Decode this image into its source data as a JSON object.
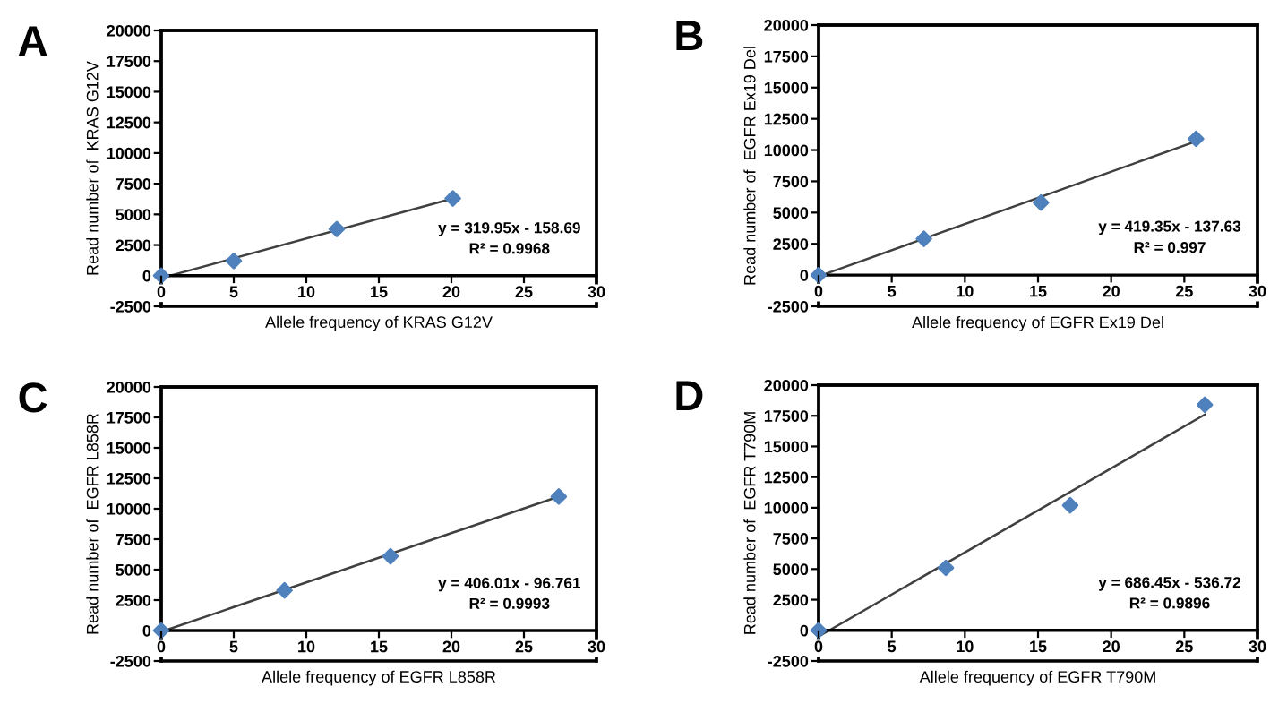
{
  "chart_data": [
    {
      "type": "scatter",
      "title": "A",
      "xlabel": "Allele frequency of KRAS G12V",
      "ylabel": "Read number of  KRAS G12V",
      "xlim": [
        0,
        30
      ],
      "ylim": [
        -2500,
        20000
      ],
      "xticks": [
        0,
        5,
        10,
        15,
        20,
        25,
        30
      ],
      "yticks": [
        -2500,
        0,
        2500,
        5000,
        7500,
        10000,
        12500,
        15000,
        17500,
        20000
      ],
      "grid": false,
      "series": [
        {
          "color": "#4f81bd",
          "marker": "diamond",
          "x": [
            0,
            5,
            12.1,
            20.1
          ],
          "values": [
            0,
            1200,
            3800,
            6300
          ]
        },
        {
          "type": "line",
          "marker": "none",
          "color": "#404040",
          "x": [
            0,
            20.1
          ],
          "values": [
            -200,
            6300
          ]
        }
      ],
      "annotations": [
        "y = 319.95x - 158.69",
        "R² = 0.9968"
      ]
    },
    {
      "type": "scatter",
      "title": "B",
      "xlabel": "Allele frequency of EGFR Ex19 Del",
      "ylabel": "Read number of  EGFR Ex19 Del",
      "xlim": [
        0,
        30
      ],
      "ylim": [
        -2500,
        20000
      ],
      "xticks": [
        0,
        5,
        10,
        15,
        20,
        25,
        30
      ],
      "yticks": [
        -2500,
        0,
        2500,
        5000,
        7500,
        10000,
        12500,
        15000,
        17500,
        20000
      ],
      "grid": false,
      "series": [
        {
          "color": "#4f81bd",
          "marker": "diamond",
          "x": [
            0,
            7.2,
            15.2,
            25.8
          ],
          "values": [
            0,
            2900,
            5800,
            10900
          ]
        },
        {
          "type": "line",
          "marker": "none",
          "color": "#404040",
          "x": [
            0,
            25.8
          ],
          "values": [
            -100,
            10700
          ]
        }
      ],
      "annotations": [
        "y = 419.35x - 137.63",
        "R² = 0.997"
      ]
    },
    {
      "type": "scatter",
      "title": "C",
      "xlabel": "Allele frequency of EGFR L858R",
      "ylabel": "Read number of  EGFR L858R",
      "xlim": [
        0,
        30
      ],
      "ylim": [
        -2500,
        20000
      ],
      "xticks": [
        0,
        5,
        10,
        15,
        20,
        25,
        30
      ],
      "yticks": [
        -2500,
        0,
        2500,
        5000,
        7500,
        10000,
        12500,
        15000,
        17500,
        20000
      ],
      "grid": false,
      "series": [
        {
          "color": "#4f81bd",
          "marker": "diamond",
          "x": [
            0,
            8.5,
            15.8,
            27.4
          ],
          "values": [
            0,
            3300,
            6100,
            11000
          ]
        },
        {
          "type": "line",
          "marker": "none",
          "color": "#404040",
          "x": [
            0,
            27.4
          ],
          "values": [
            -100,
            11000
          ]
        }
      ],
      "annotations": [
        "y = 406.01x - 96.761",
        "R² = 0.9993"
      ]
    },
    {
      "type": "scatter",
      "title": "D",
      "xlabel": "Allele frequency of EGFR T790M",
      "ylabel": "Read number of  EGFR T790M",
      "xlim": [
        0,
        30
      ],
      "ylim": [
        -2500,
        20000
      ],
      "xticks": [
        0,
        5,
        10,
        15,
        20,
        25,
        30
      ],
      "yticks": [
        -2500,
        0,
        2500,
        5000,
        7500,
        10000,
        12500,
        15000,
        17500,
        20000
      ],
      "grid": false,
      "series": [
        {
          "color": "#4f81bd",
          "marker": "diamond",
          "x": [
            0,
            8.7,
            17.2,
            26.4
          ],
          "values": [
            0,
            5100,
            10200,
            18400
          ]
        },
        {
          "type": "line",
          "marker": "none",
          "color": "#404040",
          "x": [
            0,
            26.4
          ],
          "values": [
            -500,
            17600
          ]
        }
      ],
      "annotations": [
        "y = 686.45x - 536.72",
        "R² = 0.9896"
      ]
    }
  ]
}
